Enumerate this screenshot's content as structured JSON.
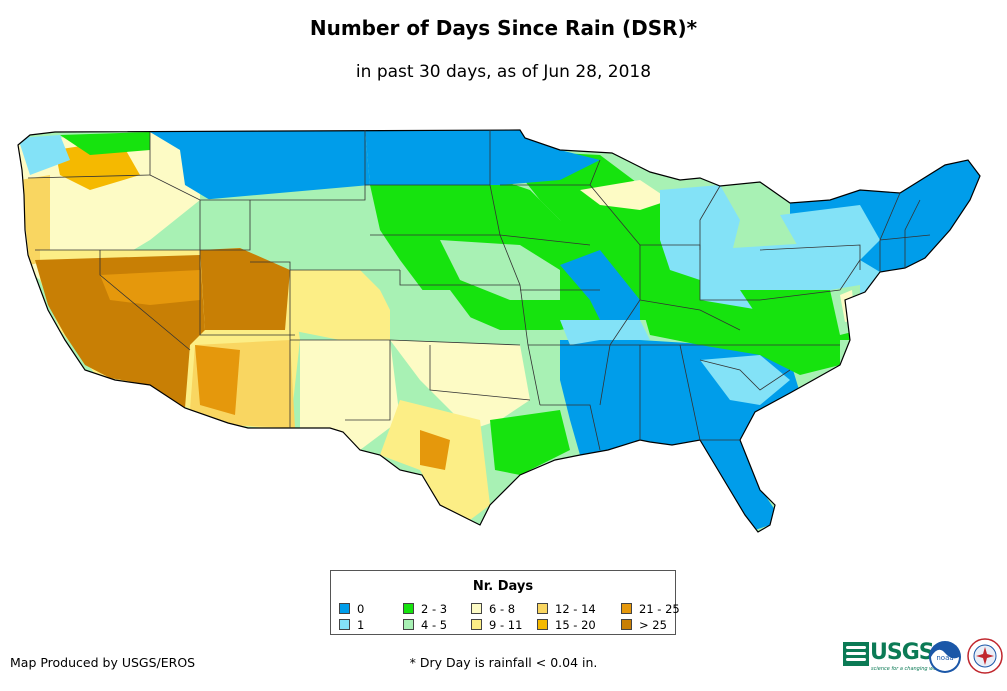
{
  "title": "Number of Days Since Rain (DSR)*",
  "subtitle": "in past 30 days, as of Jun 28, 2018",
  "legend": {
    "title": "Nr. Days",
    "items": [
      {
        "label": "0",
        "color": "#009dea"
      },
      {
        "label": "1",
        "color": "#83e2f7"
      },
      {
        "label": "2 - 3",
        "color": "#16e30e"
      },
      {
        "label": "4 - 5",
        "color": "#a8f1b4"
      },
      {
        "label": "6 - 8",
        "color": "#fdfbc5"
      },
      {
        "label": "9 - 11",
        "color": "#fcee86"
      },
      {
        "label": "12 - 14",
        "color": "#f9d661"
      },
      {
        "label": "15 - 20",
        "color": "#f5b900"
      },
      {
        "label": "21 - 25",
        "color": "#e5980c"
      },
      {
        "label": "> 25",
        "color": "#c87f05"
      }
    ]
  },
  "credit": "Map Produced by USGS/EROS",
  "footnote": "* Dry Day is rainfall < 0.04 in.",
  "logos": {
    "usgs": "USGS",
    "usgs_tagline": "science for a changing world",
    "noaa": "noaa",
    "nws_icon": "nws-logo-icon"
  }
}
